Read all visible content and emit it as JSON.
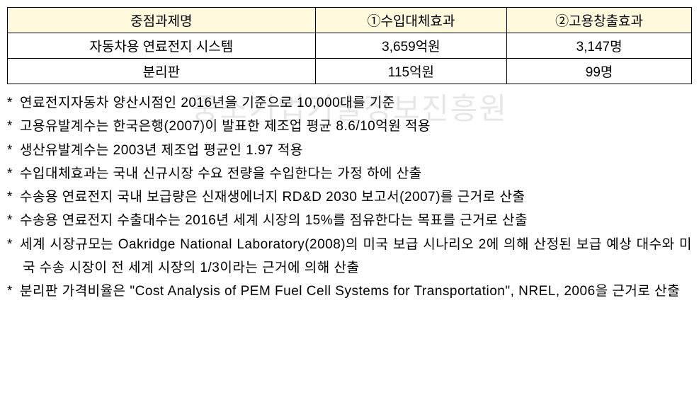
{
  "table": {
    "headers": [
      "중점과제명",
      "①수입대체효과",
      "②고용창출효과"
    ],
    "rows": [
      [
        "자동차용 연료전지 시스템",
        "3,659억원",
        "3,147명"
      ],
      [
        "분리판",
        "115억원",
        "99명"
      ]
    ],
    "header_bg": "#fff9dd",
    "border_color": "#000000",
    "font_size": 19
  },
  "watermark": {
    "text": "중소기업기술정보진흥원",
    "color": "#d8d8d8"
  },
  "notes": [
    "연료전지자동차 양산시점인 2016년을 기준으로 10,000대를 기준",
    "고용유발계수는 한국은행(2007)이 발표한 제조업 평균 8.6/10억원 적용",
    "생산유발계수는 2003년 제조업 평균인 1.97 적용",
    "수입대체효과는 국내 신규시장 수요 전량을 수입한다는 가정 하에 산출",
    "수송용 연료전지 국내 보급량은 신재생에너지 RD&D 2030 보고서(2007)를 근거로 산출",
    "수송용 연료전지 수출대수는 2016년 세계 시장의 15%를 점유한다는 목표를 근거로 산출",
    "세계 시장규모는 Oakridge National Laboratory(2008)의 미국 보급 시나리오 2에 의해 산정된 보급 예상 대수와 미국 수송 시장이 전 세계 시장의 1/3이라는 근거에 의해 산출",
    "분리판 가격비율은 \"Cost Analysis of PEM Fuel Cell Systems for Transportation\", NREL, 2006을 근거로 산출"
  ],
  "styling": {
    "page_bg": "#ffffff",
    "text_color": "#000000",
    "line_height": 1.75
  }
}
